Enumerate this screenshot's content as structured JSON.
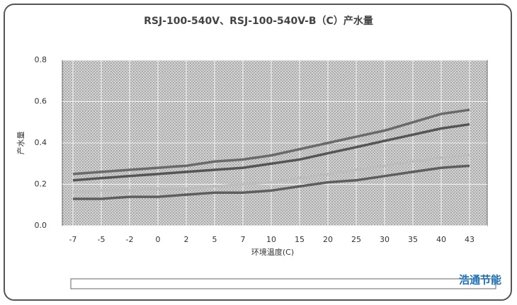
{
  "chart_data": {
    "type": "line",
    "title": "RSJ-100-540V、RSJ-100-540V-B（C）产水量",
    "x_label": "环境温度(C)",
    "y_label": "产水量",
    "logo": "浩通节能",
    "categories": [
      "-7",
      "-5",
      "-2",
      "0",
      "2",
      "5",
      "7",
      "10",
      "15",
      "20",
      "25",
      "30",
      "35",
      "40",
      "43"
    ],
    "ylim": [
      0,
      0.8
    ],
    "yticks": [
      {
        "value": 0,
        "label": "0.0"
      },
      0.2,
      0.4,
      0.6,
      0.8
    ],
    "grid": true,
    "series": [
      {
        "color": "#6a6a6a",
        "values": [
          0.25,
          0.26,
          0.27,
          0.28,
          0.29,
          0.31,
          0.32,
          0.34,
          0.37,
          0.4,
          0.43,
          0.46,
          0.5,
          0.54,
          0.56
        ]
      },
      {
        "color": "#555555",
        "values": [
          0.22,
          0.23,
          0.24,
          0.25,
          0.26,
          0.27,
          0.28,
          0.3,
          0.32,
          0.35,
          0.38,
          0.41,
          0.44,
          0.47,
          0.49
        ]
      },
      {
        "color": "#bdbdbd",
        "values": [
          0.16,
          0.17,
          0.17,
          0.18,
          0.18,
          0.19,
          0.2,
          0.21,
          0.23,
          0.25,
          0.27,
          0.29,
          0.31,
          0.33,
          0.34
        ]
      },
      {
        "color": "#5e5e5e",
        "values": [
          0.13,
          0.13,
          0.14,
          0.14,
          0.15,
          0.16,
          0.16,
          0.17,
          0.19,
          0.21,
          0.22,
          0.24,
          0.26,
          0.28,
          0.29
        ]
      }
    ]
  }
}
